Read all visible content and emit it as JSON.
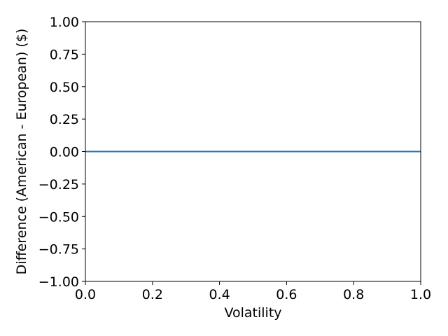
{
  "chart_data": {
    "type": "line",
    "title": "",
    "xlabel": "Volatility",
    "ylabel": "Difference (American - European) ($)",
    "xlim": [
      0.0,
      1.0
    ],
    "ylim": [
      -1.0,
      1.0
    ],
    "x_ticks": [
      0.0,
      0.2,
      0.4,
      0.6,
      0.8,
      1.0
    ],
    "x_tick_labels": [
      "0.0",
      "0.2",
      "0.4",
      "0.6",
      "0.8",
      "1.0"
    ],
    "y_ticks": [
      -1.0,
      -0.75,
      -0.5,
      -0.25,
      0.0,
      0.25,
      0.5,
      0.75,
      1.0
    ],
    "y_tick_labels": [
      "−1.00",
      "−0.75",
      "−0.50",
      "−0.25",
      "0.00",
      "0.25",
      "0.50",
      "0.75",
      "1.00"
    ],
    "grid": false,
    "series": [
      {
        "x": [
          0.0,
          0.2,
          0.4,
          0.6,
          0.8,
          1.0
        ],
        "values": [
          0.0,
          0.0,
          0.0,
          0.0,
          0.0,
          0.0
        ],
        "color": "#1f77b4"
      }
    ]
  }
}
